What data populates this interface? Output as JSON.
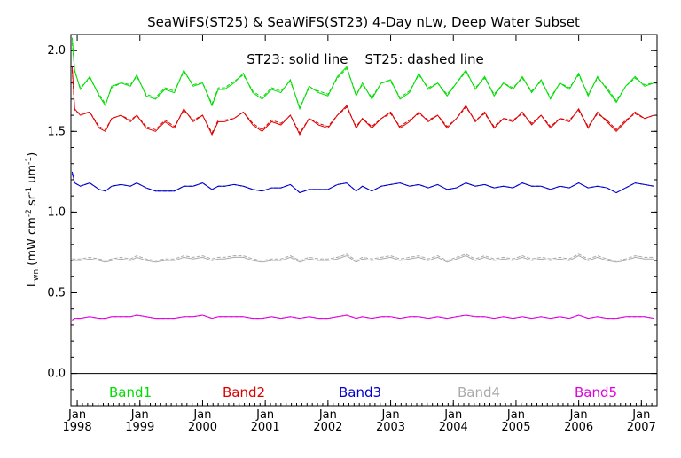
{
  "chart_data": {
    "type": "line",
    "title": "SeaWiFS(ST25) & SeaWiFS(ST23) 4-Day nLw, Deep Water Subset",
    "ylabel": {
      "base": "L",
      "sub": "wn",
      "text": "(mW cm",
      "sup1": "-2",
      "mid": " sr",
      "sup2": "-1",
      "mid2": " um",
      "sup3": "-1",
      "end": ")"
    },
    "annotation": "ST23: solid line    ST25: dashed line",
    "ylim": [
      -0.2,
      2.1
    ],
    "xlim": [
      1997.9,
      2007.25
    ],
    "yticks": [
      {
        "value": 0.0,
        "label": "0.0"
      },
      {
        "value": 0.5,
        "label": "0.5"
      },
      {
        "value": 1.0,
        "label": "1.0"
      },
      {
        "value": 1.5,
        "label": "1.5"
      },
      {
        "value": 2.0,
        "label": "2.0"
      }
    ],
    "xticks": [
      {
        "value": 1998.0,
        "month": "Jan",
        "year": "1998"
      },
      {
        "value": 1999.0,
        "month": "Jan",
        "year": "1999"
      },
      {
        "value": 2000.0,
        "month": "Jan",
        "year": "2000"
      },
      {
        "value": 2001.0,
        "month": "Jan",
        "year": "2001"
      },
      {
        "value": 2002.0,
        "month": "Jan",
        "year": "2002"
      },
      {
        "value": 2003.0,
        "month": "Jan",
        "year": "2003"
      },
      {
        "value": 2004.0,
        "month": "Jan",
        "year": "2004"
      },
      {
        "value": 2005.0,
        "month": "Jan",
        "year": "2005"
      },
      {
        "value": 2006.0,
        "month": "Jan",
        "year": "2006"
      },
      {
        "value": 2007.0,
        "month": "Jan",
        "year": "2007"
      }
    ],
    "zero_line": 0.0,
    "series": [
      {
        "name": "Band1",
        "color": "#00dd00",
        "x": [
          1997.92,
          1997.96,
          1998.05,
          1998.2,
          1998.35,
          1998.45,
          1998.55,
          1998.7,
          1998.85,
          1998.95,
          1999.1,
          1999.25,
          1999.4,
          1999.55,
          1999.7,
          1999.85,
          2000.0,
          2000.15,
          2000.25,
          2000.35,
          2000.5,
          2000.65,
          2000.8,
          2000.95,
          2001.1,
          2001.25,
          2001.4,
          2001.55,
          2001.7,
          2001.85,
          2002.0,
          2002.15,
          2002.3,
          2002.45,
          2002.55,
          2002.7,
          2002.85,
          2003.0,
          2003.15,
          2003.3,
          2003.45,
          2003.6,
          2003.75,
          2003.9,
          2004.05,
          2004.2,
          2004.35,
          2004.5,
          2004.65,
          2004.8,
          2004.95,
          2005.1,
          2005.25,
          2005.4,
          2005.55,
          2005.7,
          2005.85,
          2006.0,
          2006.15,
          2006.3,
          2006.45,
          2006.6,
          2006.75,
          2006.9,
          2007.05,
          2007.2
        ],
        "st23": [
          2.08,
          1.88,
          1.76,
          1.84,
          1.72,
          1.66,
          1.78,
          1.8,
          1.78,
          1.85,
          1.72,
          1.7,
          1.76,
          1.74,
          1.88,
          1.78,
          1.8,
          1.66,
          1.76,
          1.76,
          1.8,
          1.86,
          1.74,
          1.7,
          1.76,
          1.74,
          1.82,
          1.64,
          1.78,
          1.74,
          1.72,
          1.84,
          1.9,
          1.72,
          1.8,
          1.7,
          1.8,
          1.82,
          1.7,
          1.74,
          1.86,
          1.76,
          1.8,
          1.72,
          1.8,
          1.88,
          1.76,
          1.84,
          1.72,
          1.8,
          1.76,
          1.84,
          1.74,
          1.82,
          1.7,
          1.8,
          1.76,
          1.86,
          1.72,
          1.84,
          1.76,
          1.68,
          1.78,
          1.84,
          1.78,
          1.8
        ],
        "st25": [
          2.05,
          1.87,
          1.77,
          1.83,
          1.73,
          1.67,
          1.77,
          1.8,
          1.79,
          1.84,
          1.73,
          1.71,
          1.77,
          1.75,
          1.87,
          1.79,
          1.8,
          1.67,
          1.77,
          1.77,
          1.81,
          1.85,
          1.75,
          1.71,
          1.77,
          1.75,
          1.81,
          1.65,
          1.77,
          1.75,
          1.73,
          1.83,
          1.89,
          1.73,
          1.79,
          1.71,
          1.8,
          1.81,
          1.71,
          1.75,
          1.85,
          1.77,
          1.8,
          1.73,
          1.8,
          1.87,
          1.77,
          1.83,
          1.73,
          1.8,
          1.77,
          1.83,
          1.75,
          1.81,
          1.71,
          1.8,
          1.77,
          1.85,
          1.73,
          1.83,
          1.77,
          1.69,
          1.78,
          1.83,
          1.79,
          1.8
        ]
      },
      {
        "name": "Band2",
        "color": "#dd0000",
        "x": [
          1997.92,
          1997.96,
          1998.05,
          1998.2,
          1998.35,
          1998.45,
          1998.55,
          1998.7,
          1998.85,
          1998.95,
          1999.1,
          1999.25,
          1999.4,
          1999.55,
          1999.7,
          1999.85,
          2000.0,
          2000.15,
          2000.25,
          2000.35,
          2000.5,
          2000.65,
          2000.8,
          2000.95,
          2001.1,
          2001.25,
          2001.4,
          2001.55,
          2001.7,
          2001.85,
          2002.0,
          2002.15,
          2002.3,
          2002.45,
          2002.55,
          2002.7,
          2002.85,
          2003.0,
          2003.15,
          2003.3,
          2003.45,
          2003.6,
          2003.75,
          2003.9,
          2004.05,
          2004.2,
          2004.35,
          2004.5,
          2004.65,
          2004.8,
          2004.95,
          2005.1,
          2005.25,
          2005.4,
          2005.55,
          2005.7,
          2005.85,
          2006.0,
          2006.15,
          2006.3,
          2006.45,
          2006.6,
          2006.75,
          2006.9,
          2007.05,
          2007.2
        ],
        "st23": [
          1.9,
          1.64,
          1.6,
          1.62,
          1.52,
          1.5,
          1.58,
          1.6,
          1.56,
          1.6,
          1.52,
          1.5,
          1.56,
          1.52,
          1.64,
          1.56,
          1.6,
          1.48,
          1.56,
          1.56,
          1.58,
          1.62,
          1.54,
          1.5,
          1.56,
          1.54,
          1.6,
          1.48,
          1.58,
          1.54,
          1.52,
          1.6,
          1.66,
          1.52,
          1.58,
          1.52,
          1.58,
          1.62,
          1.52,
          1.56,
          1.62,
          1.56,
          1.6,
          1.52,
          1.58,
          1.66,
          1.56,
          1.62,
          1.52,
          1.58,
          1.56,
          1.62,
          1.54,
          1.6,
          1.52,
          1.58,
          1.56,
          1.64,
          1.52,
          1.62,
          1.56,
          1.5,
          1.56,
          1.62,
          1.58,
          1.6
        ],
        "st25": [
          1.88,
          1.63,
          1.61,
          1.62,
          1.53,
          1.51,
          1.58,
          1.6,
          1.57,
          1.6,
          1.53,
          1.51,
          1.57,
          1.53,
          1.63,
          1.57,
          1.6,
          1.49,
          1.57,
          1.57,
          1.58,
          1.62,
          1.55,
          1.51,
          1.57,
          1.55,
          1.6,
          1.49,
          1.58,
          1.55,
          1.53,
          1.6,
          1.65,
          1.53,
          1.58,
          1.53,
          1.58,
          1.61,
          1.53,
          1.57,
          1.61,
          1.57,
          1.6,
          1.53,
          1.58,
          1.65,
          1.57,
          1.61,
          1.53,
          1.58,
          1.57,
          1.61,
          1.55,
          1.6,
          1.53,
          1.58,
          1.57,
          1.63,
          1.53,
          1.61,
          1.57,
          1.51,
          1.57,
          1.61,
          1.58,
          1.6
        ]
      },
      {
        "name": "Band3",
        "color": "#0000cc",
        "x": [
          1997.92,
          1997.96,
          1998.05,
          1998.2,
          1998.35,
          1998.45,
          1998.55,
          1998.7,
          1998.85,
          1998.95,
          1999.1,
          1999.25,
          1999.4,
          1999.55,
          1999.7,
          1999.85,
          2000.0,
          2000.15,
          2000.25,
          2000.35,
          2000.5,
          2000.65,
          2000.8,
          2000.95,
          2001.1,
          2001.25,
          2001.4,
          2001.55,
          2001.7,
          2001.85,
          2002.0,
          2002.15,
          2002.3,
          2002.45,
          2002.55,
          2002.7,
          2002.85,
          2003.0,
          2003.15,
          2003.3,
          2003.45,
          2003.6,
          2003.75,
          2003.9,
          2004.05,
          2004.2,
          2004.35,
          2004.5,
          2004.65,
          2004.8,
          2004.95,
          2005.1,
          2005.25,
          2005.4,
          2005.55,
          2005.7,
          2005.85,
          2006.0,
          2006.15,
          2006.3,
          2006.45,
          2006.6,
          2006.75,
          2006.9,
          2007.05,
          2007.2
        ],
        "st23": [
          1.25,
          1.18,
          1.16,
          1.18,
          1.14,
          1.13,
          1.16,
          1.17,
          1.16,
          1.18,
          1.15,
          1.13,
          1.13,
          1.13,
          1.16,
          1.16,
          1.18,
          1.14,
          1.16,
          1.16,
          1.17,
          1.16,
          1.14,
          1.13,
          1.15,
          1.15,
          1.17,
          1.12,
          1.14,
          1.14,
          1.14,
          1.17,
          1.18,
          1.13,
          1.16,
          1.13,
          1.16,
          1.17,
          1.18,
          1.16,
          1.17,
          1.15,
          1.17,
          1.14,
          1.15,
          1.18,
          1.16,
          1.17,
          1.15,
          1.16,
          1.15,
          1.18,
          1.16,
          1.16,
          1.14,
          1.16,
          1.15,
          1.18,
          1.15,
          1.16,
          1.15,
          1.12,
          1.15,
          1.18,
          1.17,
          1.16
        ],
        "st25": [
          1.24,
          1.18,
          1.16,
          1.18,
          1.14,
          1.13,
          1.16,
          1.17,
          1.16,
          1.18,
          1.15,
          1.13,
          1.13,
          1.13,
          1.16,
          1.16,
          1.18,
          1.14,
          1.16,
          1.16,
          1.17,
          1.16,
          1.14,
          1.13,
          1.15,
          1.15,
          1.17,
          1.12,
          1.14,
          1.14,
          1.14,
          1.17,
          1.18,
          1.13,
          1.16,
          1.13,
          1.16,
          1.17,
          1.18,
          1.16,
          1.17,
          1.15,
          1.17,
          1.14,
          1.15,
          1.18,
          1.16,
          1.17,
          1.15,
          1.16,
          1.15,
          1.18,
          1.16,
          1.16,
          1.14,
          1.16,
          1.15,
          1.18,
          1.15,
          1.16,
          1.15,
          1.12,
          1.15,
          1.18,
          1.17,
          1.16
        ]
      },
      {
        "name": "Band4",
        "color": "#aaaaaa",
        "x": [
          1997.92,
          1997.96,
          1998.05,
          1998.2,
          1998.35,
          1998.45,
          1998.55,
          1998.7,
          1998.85,
          1998.95,
          1999.1,
          1999.25,
          1999.4,
          1999.55,
          1999.7,
          1999.85,
          2000.0,
          2000.15,
          2000.25,
          2000.35,
          2000.5,
          2000.65,
          2000.8,
          2000.95,
          2001.1,
          2001.25,
          2001.4,
          2001.55,
          2001.7,
          2001.85,
          2002.0,
          2002.15,
          2002.3,
          2002.45,
          2002.55,
          2002.7,
          2002.85,
          2003.0,
          2003.15,
          2003.3,
          2003.45,
          2003.6,
          2003.75,
          2003.9,
          2004.05,
          2004.2,
          2004.35,
          2004.5,
          2004.65,
          2004.8,
          2004.95,
          2005.1,
          2005.25,
          2005.4,
          2005.55,
          2005.7,
          2005.85,
          2006.0,
          2006.15,
          2006.3,
          2006.45,
          2006.6,
          2006.75,
          2006.9,
          2007.05,
          2007.2
        ],
        "st23": [
          0.7,
          0.7,
          0.7,
          0.71,
          0.7,
          0.69,
          0.7,
          0.71,
          0.7,
          0.72,
          0.7,
          0.69,
          0.7,
          0.7,
          0.72,
          0.71,
          0.72,
          0.7,
          0.71,
          0.71,
          0.72,
          0.72,
          0.7,
          0.69,
          0.7,
          0.7,
          0.72,
          0.69,
          0.71,
          0.7,
          0.7,
          0.71,
          0.73,
          0.69,
          0.71,
          0.7,
          0.71,
          0.72,
          0.7,
          0.71,
          0.72,
          0.7,
          0.72,
          0.69,
          0.71,
          0.73,
          0.7,
          0.72,
          0.7,
          0.71,
          0.7,
          0.72,
          0.7,
          0.71,
          0.7,
          0.71,
          0.7,
          0.73,
          0.7,
          0.72,
          0.7,
          0.69,
          0.7,
          0.72,
          0.71,
          0.71
        ],
        "st25": [
          0.71,
          0.71,
          0.71,
          0.72,
          0.71,
          0.7,
          0.71,
          0.72,
          0.71,
          0.73,
          0.71,
          0.7,
          0.71,
          0.71,
          0.73,
          0.72,
          0.73,
          0.71,
          0.72,
          0.72,
          0.73,
          0.73,
          0.71,
          0.7,
          0.71,
          0.71,
          0.73,
          0.7,
          0.72,
          0.71,
          0.71,
          0.72,
          0.74,
          0.7,
          0.72,
          0.71,
          0.72,
          0.73,
          0.71,
          0.72,
          0.73,
          0.71,
          0.73,
          0.7,
          0.72,
          0.74,
          0.71,
          0.73,
          0.71,
          0.72,
          0.71,
          0.73,
          0.71,
          0.72,
          0.71,
          0.72,
          0.71,
          0.74,
          0.71,
          0.73,
          0.71,
          0.7,
          0.71,
          0.73,
          0.72,
          0.72
        ]
      },
      {
        "name": "Band5",
        "color": "#dd00dd",
        "x": [
          1997.92,
          1997.96,
          1998.05,
          1998.2,
          1998.35,
          1998.45,
          1998.55,
          1998.7,
          1998.85,
          1998.95,
          1999.1,
          1999.25,
          1999.4,
          1999.55,
          1999.7,
          1999.85,
          2000.0,
          2000.15,
          2000.25,
          2000.35,
          2000.5,
          2000.65,
          2000.8,
          2000.95,
          2001.1,
          2001.25,
          2001.4,
          2001.55,
          2001.7,
          2001.85,
          2002.0,
          2002.15,
          2002.3,
          2002.45,
          2002.55,
          2002.7,
          2002.85,
          2003.0,
          2003.15,
          2003.3,
          2003.45,
          2003.6,
          2003.75,
          2003.9,
          2004.05,
          2004.2,
          2004.35,
          2004.5,
          2004.65,
          2004.8,
          2004.95,
          2005.1,
          2005.25,
          2005.4,
          2005.55,
          2005.7,
          2005.85,
          2006.0,
          2006.15,
          2006.3,
          2006.45,
          2006.6,
          2006.75,
          2006.9,
          2007.05,
          2007.2
        ],
        "st23": [
          0.33,
          0.34,
          0.34,
          0.35,
          0.34,
          0.34,
          0.35,
          0.35,
          0.35,
          0.36,
          0.35,
          0.34,
          0.34,
          0.34,
          0.35,
          0.35,
          0.36,
          0.34,
          0.35,
          0.35,
          0.35,
          0.35,
          0.34,
          0.34,
          0.35,
          0.34,
          0.35,
          0.34,
          0.35,
          0.34,
          0.34,
          0.35,
          0.36,
          0.34,
          0.35,
          0.34,
          0.35,
          0.35,
          0.34,
          0.35,
          0.35,
          0.34,
          0.35,
          0.34,
          0.35,
          0.36,
          0.35,
          0.35,
          0.34,
          0.35,
          0.34,
          0.35,
          0.34,
          0.35,
          0.34,
          0.35,
          0.34,
          0.36,
          0.34,
          0.35,
          0.34,
          0.34,
          0.35,
          0.35,
          0.35,
          0.34
        ],
        "st25": [
          0.33,
          0.34,
          0.34,
          0.35,
          0.34,
          0.34,
          0.35,
          0.35,
          0.35,
          0.36,
          0.35,
          0.34,
          0.34,
          0.34,
          0.35,
          0.35,
          0.36,
          0.34,
          0.35,
          0.35,
          0.35,
          0.35,
          0.34,
          0.34,
          0.35,
          0.34,
          0.35,
          0.34,
          0.35,
          0.34,
          0.34,
          0.35,
          0.36,
          0.34,
          0.35,
          0.34,
          0.35,
          0.35,
          0.34,
          0.35,
          0.35,
          0.34,
          0.35,
          0.34,
          0.35,
          0.36,
          0.35,
          0.35,
          0.34,
          0.35,
          0.34,
          0.35,
          0.34,
          0.35,
          0.34,
          0.35,
          0.34,
          0.36,
          0.34,
          0.35,
          0.34,
          0.34,
          0.35,
          0.35,
          0.35,
          0.34
        ]
      }
    ],
    "legend_placement": "bottom"
  }
}
